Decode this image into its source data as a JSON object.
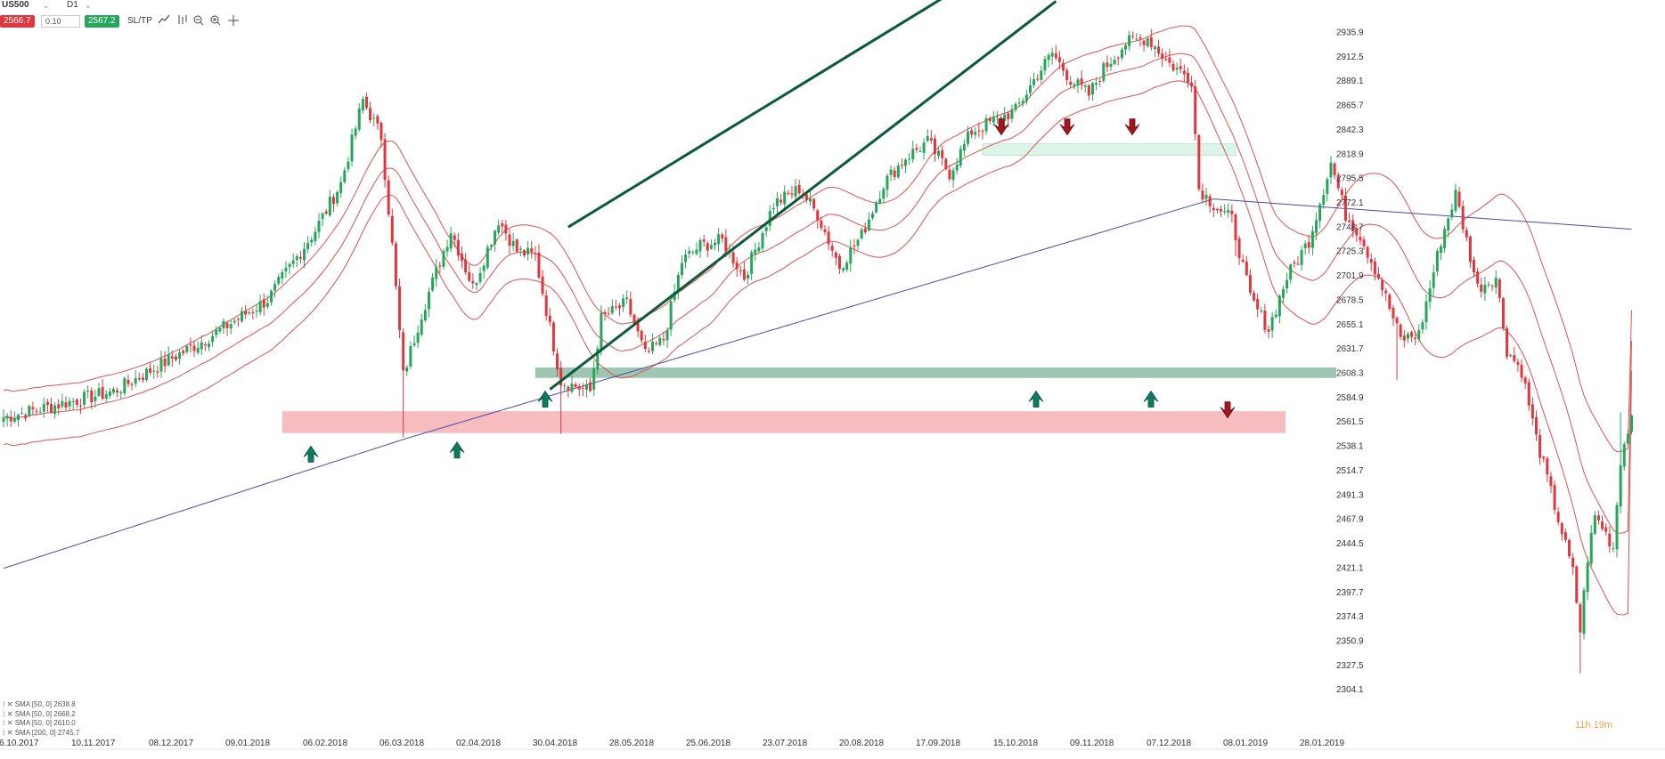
{
  "toolbar": {
    "symbol": "US500",
    "symbol_caret": "⌄",
    "timeframe": "D1",
    "sell_price": "2566.7",
    "quantity": "0.10",
    "buy_price": "2567.2",
    "sltp_label": "SL/TP",
    "icons": [
      "line-chart-icon",
      "indicators-icon",
      "zoom-out-icon",
      "zoom-in-icon",
      "crosshair-icon"
    ]
  },
  "timer": "11h 19m",
  "legend": [
    "SMA [50, 0] 2638.8",
    "SMA [50, 0] 2668.2",
    "SMA [50, 0] 2610.0",
    "SMA [200, 0] 2745.7"
  ],
  "colors": {
    "bull": "#26a65b",
    "bear": "#e0373e",
    "sma_envelope": "#d9534f",
    "sma_200": "#4a4aa8",
    "trendline": "#0b5a3a",
    "support_zone": "#7fb39a",
    "resistance_zone": "#f4a6aa",
    "top_zone": "#c8efd9",
    "arrow_up": "#0e7a5e",
    "arrow_down": "#a31520"
  },
  "chart_data": {
    "type": "candlestick",
    "instrument": "US500",
    "timeframe": "D1",
    "y_ticks": [
      2935.9,
      2912.5,
      2889.1,
      2865.7,
      2842.3,
      2818.9,
      2795.5,
      2772.1,
      2748.7,
      2725.3,
      2701.9,
      2678.5,
      2655.1,
      2631.7,
      2608.3,
      2584.9,
      2561.5,
      2538.1,
      2514.7,
      2491.3,
      2467.9,
      2444.5,
      2421.1,
      2397.7,
      2374.3,
      2350.9,
      2327.5,
      2304.1
    ],
    "x_ticks": [
      "6.10.2017",
      "10.11.2017",
      "08.12.2017",
      "09.01.2018",
      "06.02.2018",
      "06.03.2018",
      "02.04.2018",
      "30.04.2018",
      "28.05.2018",
      "25.06.2018",
      "23.07.2018",
      "20.08.2018",
      "17.09.2018",
      "15.10.2018",
      "09.11.2018",
      "07.12.2018",
      "08.01.2019",
      "28.01.2019"
    ],
    "anchors": [
      [
        0,
        2565
      ],
      [
        30,
        2590
      ],
      [
        55,
        2640
      ],
      [
        72,
        2678
      ],
      [
        85,
        2745
      ],
      [
        92,
        2790
      ],
      [
        98,
        2870
      ],
      [
        103,
        2835
      ],
      [
        106,
        2730
      ],
      [
        109,
        2605
      ],
      [
        114,
        2665
      ],
      [
        118,
        2705
      ],
      [
        122,
        2745
      ],
      [
        128,
        2690
      ],
      [
        135,
        2755
      ],
      [
        140,
        2725
      ],
      [
        145,
        2720
      ],
      [
        152,
        2600
      ],
      [
        160,
        2590
      ],
      [
        163,
        2660
      ],
      [
        170,
        2675
      ],
      [
        175,
        2625
      ],
      [
        180,
        2640
      ],
      [
        185,
        2715
      ],
      [
        190,
        2730
      ],
      [
        196,
        2735
      ],
      [
        202,
        2700
      ],
      [
        210,
        2770
      ],
      [
        217,
        2785
      ],
      [
        222,
        2760
      ],
      [
        228,
        2710
      ],
      [
        234,
        2740
      ],
      [
        240,
        2790
      ],
      [
        246,
        2815
      ],
      [
        252,
        2830
      ],
      [
        258,
        2800
      ],
      [
        264,
        2840
      ],
      [
        270,
        2850
      ],
      [
        276,
        2860
      ],
      [
        282,
        2895
      ],
      [
        286,
        2915
      ],
      [
        291,
        2890
      ],
      [
        296,
        2875
      ],
      [
        300,
        2900
      ],
      [
        306,
        2925
      ],
      [
        312,
        2930
      ],
      [
        318,
        2905
      ],
      [
        324,
        2890
      ],
      [
        326,
        2785
      ],
      [
        330,
        2770
      ],
      [
        335,
        2755
      ],
      [
        340,
        2680
      ],
      [
        345,
        2650
      ],
      [
        350,
        2700
      ],
      [
        356,
        2735
      ],
      [
        362,
        2810
      ],
      [
        366,
        2760
      ],
      [
        370,
        2740
      ],
      [
        375,
        2700
      ],
      [
        381,
        2640
      ],
      [
        386,
        2645
      ],
      [
        392,
        2735
      ],
      [
        396,
        2780
      ],
      [
        402,
        2690
      ],
      [
        407,
        2700
      ],
      [
        410,
        2630
      ],
      [
        414,
        2610
      ],
      [
        418,
        2545
      ],
      [
        423,
        2480
      ],
      [
        428,
        2416
      ],
      [
        430,
        2360
      ],
      [
        432,
        2430
      ],
      [
        434,
        2470
      ],
      [
        436,
        2460
      ],
      [
        439,
        2440
      ],
      [
        441,
        2525
      ],
      [
        444,
        2567
      ]
    ],
    "annotations": {
      "sma_200_end": 2745.7,
      "sma_envelope_ends": [
        2668.2,
        2638.8,
        2610.0
      ],
      "horizontal_zones": [
        {
          "kind": "support",
          "from": 2603,
          "to": 2613,
          "start": "30.04.2018"
        },
        {
          "kind": "resistance",
          "from": 2550,
          "to": 2571,
          "start": "06.02.2018"
        },
        {
          "kind": "resistance-top",
          "from": 2817,
          "to": 2828,
          "start": "15.10.2018"
        }
      ],
      "channel_upper": [
        [
          "23.04.2018",
          2748
        ],
        [
          "21.09.2018",
          2970
        ]
      ],
      "channel_lower": [
        [
          "30.04.2018",
          2592
        ],
        [
          "28.10.2018",
          2965
        ]
      ],
      "up_arrows": [
        [
          "06.02.2018",
          2534
        ],
        [
          "02.04.2018",
          2538
        ],
        [
          "30.04.2018",
          2587
        ],
        [
          "26.10.2018",
          2587
        ],
        [
          "20.11.2018",
          2587
        ]
      ],
      "down_arrows": [
        [
          "10.10.2018",
          2840
        ],
        [
          "05.11.2018",
          2840
        ],
        [
          "28.11.2018",
          2840
        ],
        [
          "07.01.2019",
          2568
        ]
      ]
    }
  }
}
